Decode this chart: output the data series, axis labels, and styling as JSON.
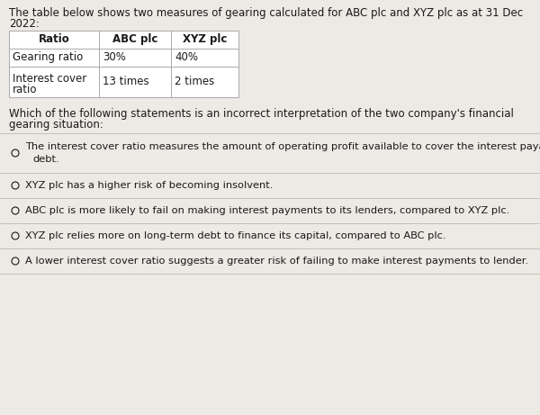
{
  "intro_line1": "The table below shows two measures of gearing calculated for ABC plc and XYZ plc as at 31 Dec",
  "intro_line2": "2022:",
  "table_headers": [
    "Ratio",
    "ABC plc",
    "XYZ plc"
  ],
  "table_rows": [
    [
      "Gearing ratio",
      "30%",
      "40%"
    ],
    [
      "Interest cover\nratio",
      "13 times",
      "2 times"
    ]
  ],
  "question_line1": "Which of the following statements is an incorrect interpretation of the two company's financial",
  "question_line2": "gearing situation:",
  "options": [
    [
      "The interest cover ratio measures the amount of operating profit available to cover the interest payable on",
      "debt."
    ],
    [
      "XYZ plc has a higher risk of becoming insolvent."
    ],
    [
      "ABC plc is more likely to fail on making interest payments to its lenders, compared to XYZ plc."
    ],
    [
      "XYZ plc relies more on long-term debt to finance its capital, compared to ABC plc."
    ],
    [
      "A lower interest cover ratio suggests a greater risk of failing to make interest payments to lender."
    ]
  ],
  "bg_color": "#ede9e4",
  "table_bg": "#ffffff",
  "text_color": "#1a1a1a",
  "line_color": "#aaaaaa",
  "divider_color": "#bbbbbb",
  "font_size_body": 8.5,
  "font_size_table": 8.5,
  "font_size_options": 8.2
}
